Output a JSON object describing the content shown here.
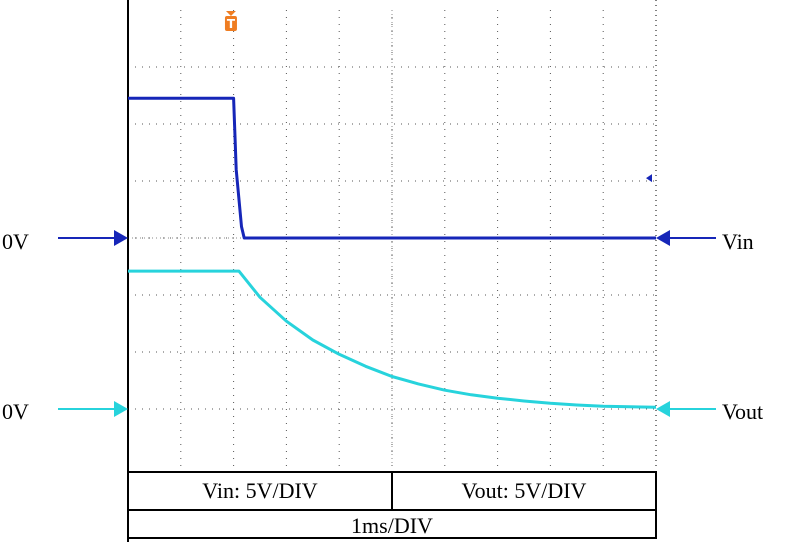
{
  "chart_data": {
    "type": "line",
    "title": "",
    "xlabel": "",
    "ylabel": "",
    "x_units": "div",
    "xlim": [
      0,
      10
    ],
    "ylim": [
      -4,
      4
    ],
    "grid": true,
    "series": [
      {
        "name": "Vin",
        "color": "#1626b8",
        "scale_label": "Vin: 5V/DIV",
        "ground_div": 0,
        "x": [
          0,
          2.0,
          2.05,
          2.15,
          2.2,
          10
        ],
        "y": [
          2.45,
          2.45,
          1.2,
          0.2,
          0.0,
          0.0
        ]
      },
      {
        "name": "Vout",
        "color": "#27d3dc",
        "scale_label": "Vout: 5V/DIV",
        "ground_div": -3,
        "x": [
          0,
          2.1,
          2.5,
          3,
          3.5,
          4,
          4.5,
          5,
          5.5,
          6,
          6.5,
          7,
          7.5,
          8,
          8.5,
          9,
          9.5,
          10
        ],
        "y": [
          -0.58,
          -0.58,
          -1.04,
          -1.46,
          -1.79,
          -2.04,
          -2.25,
          -2.43,
          -2.56,
          -2.67,
          -2.75,
          -2.81,
          -2.86,
          -2.9,
          -2.93,
          -2.95,
          -2.96,
          -2.97
        ]
      }
    ],
    "ground_labels": [
      "0V",
      "0V"
    ],
    "channel_labels": [
      "Vin",
      "Vout"
    ],
    "timebase_label": "1ms/DIV",
    "trigger_marker": "T"
  },
  "colors": {
    "vin": "#1626b8",
    "vout": "#27d3dc",
    "trigger": "#ef7d22",
    "grid": "#555555"
  }
}
